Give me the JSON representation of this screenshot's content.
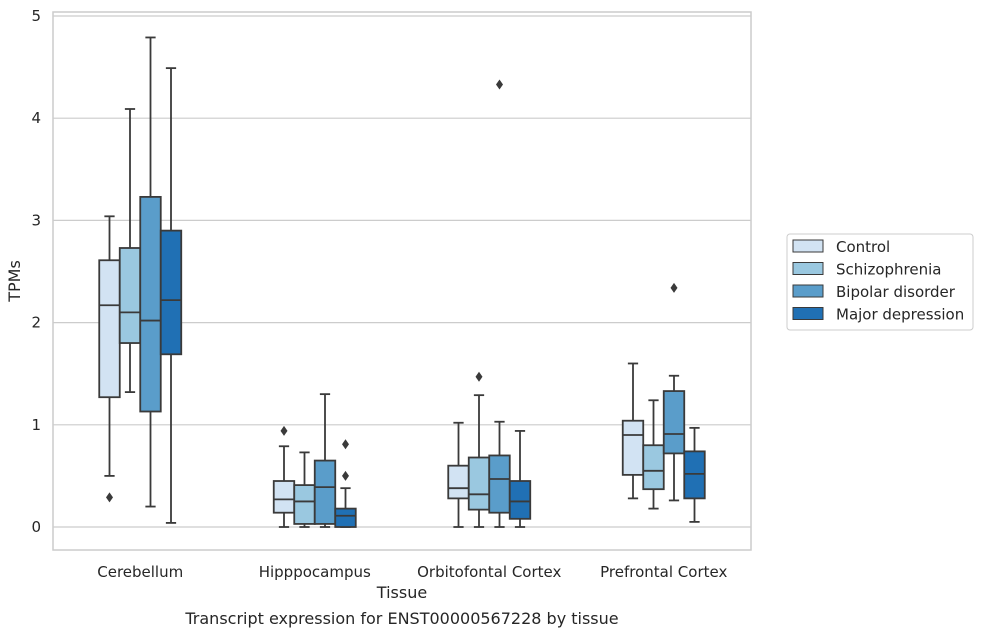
{
  "chart_data": {
    "type": "box",
    "title": "",
    "caption": "Transcript expression for ENST00000567228 by tissue",
    "xlabel": "Tissue",
    "ylabel": "TPMs",
    "ylim": [
      -0.22,
      5.04
    ],
    "yticks": [
      0,
      1,
      2,
      3,
      4,
      5
    ],
    "grid": "horizontal",
    "legend_position": "right",
    "categories": [
      "Cerebellum",
      "Hipppocampus",
      "Orbitofontal Cortex",
      "Prefrontal Cortex"
    ],
    "series": [
      {
        "name": "Control",
        "color": "#d2e3f3",
        "boxes": [
          {
            "min": 0.5,
            "q1": 1.27,
            "median": 2.17,
            "q3": 2.61,
            "max": 3.04,
            "outliers": [
              0.29
            ]
          },
          {
            "min": 0.0,
            "q1": 0.14,
            "median": 0.27,
            "q3": 0.45,
            "max": 0.79,
            "outliers": [
              0.94
            ]
          },
          {
            "min": 0.0,
            "q1": 0.28,
            "median": 0.38,
            "q3": 0.6,
            "max": 1.02,
            "outliers": []
          },
          {
            "min": 0.28,
            "q1": 0.51,
            "median": 0.9,
            "q3": 1.04,
            "max": 1.6,
            "outliers": []
          }
        ]
      },
      {
        "name": "Schizophrenia",
        "color": "#9ac8e0",
        "boxes": [
          {
            "min": 1.32,
            "q1": 1.8,
            "median": 2.1,
            "q3": 2.73,
            "max": 4.09,
            "outliers": []
          },
          {
            "min": 0.0,
            "q1": 0.03,
            "median": 0.25,
            "q3": 0.41,
            "max": 0.73,
            "outliers": []
          },
          {
            "min": 0.0,
            "q1": 0.17,
            "median": 0.32,
            "q3": 0.68,
            "max": 1.29,
            "outliers": [
              1.47
            ]
          },
          {
            "min": 0.18,
            "q1": 0.37,
            "median": 0.55,
            "q3": 0.8,
            "max": 1.24,
            "outliers": []
          }
        ]
      },
      {
        "name": "Bipolar disorder",
        "color": "#5a9dca",
        "boxes": [
          {
            "min": 0.2,
            "q1": 1.13,
            "median": 2.02,
            "q3": 3.23,
            "max": 4.79,
            "outliers": []
          },
          {
            "min": 0.0,
            "q1": 0.03,
            "median": 0.39,
            "q3": 0.65,
            "max": 1.3,
            "outliers": []
          },
          {
            "min": 0.0,
            "q1": 0.14,
            "median": 0.47,
            "q3": 0.7,
            "max": 1.03,
            "outliers": [
              4.33
            ]
          },
          {
            "min": 0.26,
            "q1": 0.72,
            "median": 0.91,
            "q3": 1.33,
            "max": 1.48,
            "outliers": [
              2.34
            ]
          }
        ]
      },
      {
        "name": "Major depression",
        "color": "#2070b4",
        "boxes": [
          {
            "min": 0.04,
            "q1": 1.69,
            "median": 2.22,
            "q3": 2.9,
            "max": 4.49,
            "outliers": []
          },
          {
            "min": 0.0,
            "q1": 0.0,
            "median": 0.11,
            "q3": 0.18,
            "max": 0.38,
            "outliers": [
              0.5,
              0.81
            ]
          },
          {
            "min": 0.0,
            "q1": 0.08,
            "median": 0.25,
            "q3": 0.45,
            "max": 0.94,
            "outliers": []
          },
          {
            "min": 0.05,
            "q1": 0.28,
            "median": 0.52,
            "q3": 0.74,
            "max": 0.97,
            "outliers": []
          }
        ]
      }
    ]
  }
}
